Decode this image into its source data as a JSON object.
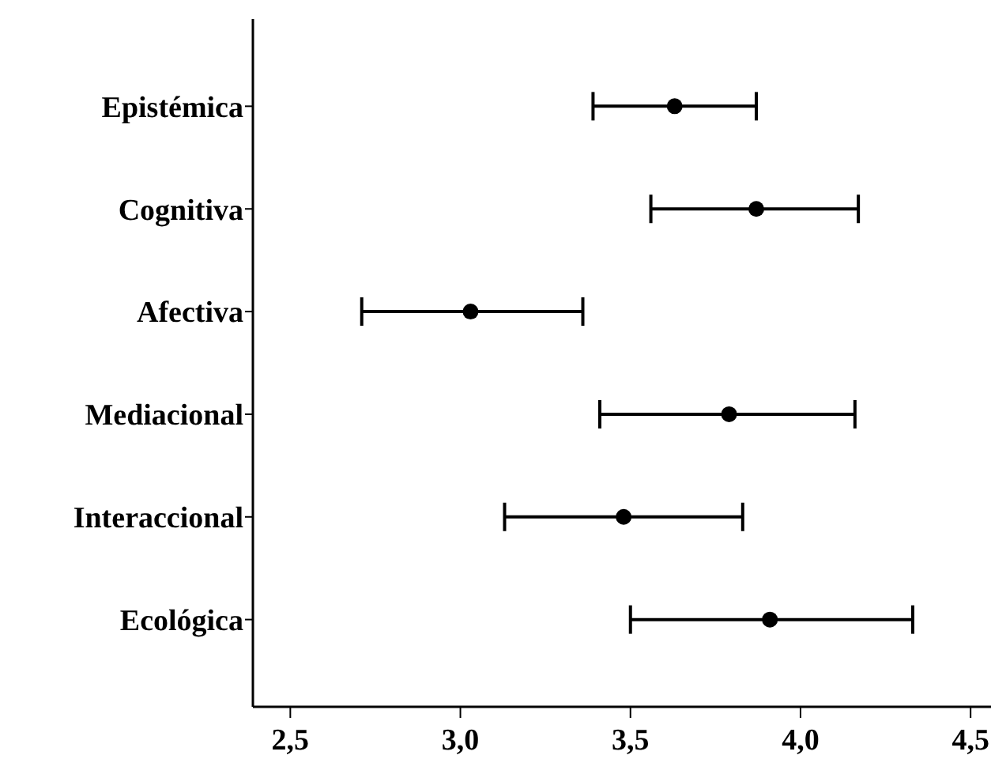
{
  "chart_data": {
    "type": "scatter",
    "orientation": "horizontal",
    "categories": [
      "Epistémica",
      "Cognitiva",
      "Afectiva",
      "Mediacional",
      "Interaccional",
      "Ecológica"
    ],
    "values": [
      3.63,
      3.87,
      3.03,
      3.79,
      3.48,
      3.91
    ],
    "errors": [
      [
        3.39,
        3.87
      ],
      [
        3.56,
        4.17
      ],
      [
        2.71,
        3.36
      ],
      [
        3.41,
        4.16
      ],
      [
        3.13,
        3.83
      ],
      [
        3.5,
        4.33
      ]
    ],
    "color": "#000000",
    "marker": "circle",
    "xlim": [
      2.39,
      4.56
    ],
    "xticks": [
      {
        "value": 2.5,
        "label": "2,5"
      },
      {
        "value": 3.0,
        "label": "3,0"
      },
      {
        "value": 3.5,
        "label": "3,5"
      },
      {
        "value": 4.0,
        "label": "4,0"
      },
      {
        "value": 4.5,
        "label": "4,5"
      }
    ]
  }
}
